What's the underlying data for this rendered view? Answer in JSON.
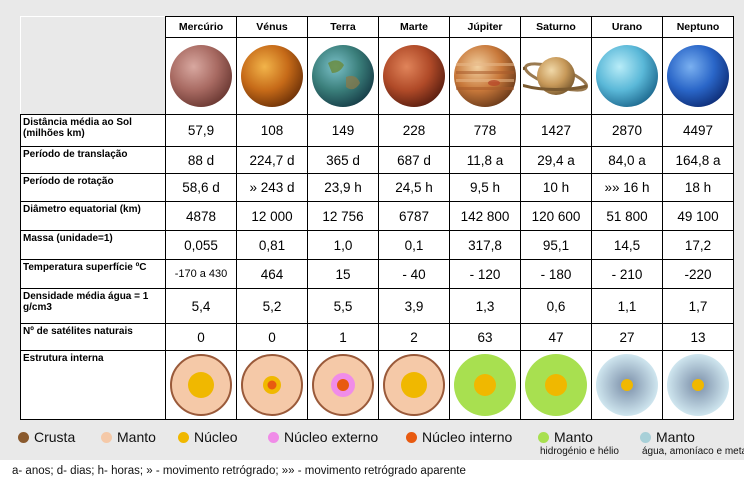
{
  "planets": [
    {
      "name": "Mercúrio",
      "distance": "57,9",
      "translation": "88 d",
      "rotation": "58,6 d",
      "diameter": "4878",
      "mass": "0,055",
      "temperature": "-170 a 430",
      "density": "5,4",
      "satellites": "0",
      "img_colors": [
        "#d8a8a0",
        "#a86a62",
        "#6a3832"
      ],
      "struct": {
        "crust": "#9a5a3a",
        "mantle": "#f5c9a8",
        "inner_core": "#f0b800"
      }
    },
    {
      "name": "Vénus",
      "distance": "108",
      "translation": "224,7 d",
      "rotation": "» 243 d",
      "diameter": "12 000",
      "mass": "0,81",
      "temperature": "464",
      "density": "5,2",
      "satellites": "0",
      "img_colors": [
        "#f2b44a",
        "#c66a18",
        "#6e3208"
      ],
      "struct": {
        "crust": "#9a5a3a",
        "mantle": "#f5c9a8",
        "outer_core": "#f0b800",
        "inner_core": "#e85a10"
      }
    },
    {
      "name": "Terra",
      "distance": "149",
      "translation": "365 d",
      "rotation": "23,9 h",
      "diameter": "12 756",
      "mass": "1,0",
      "temperature": "15",
      "density": "5,5",
      "satellites": "1",
      "img_colors": [
        "#7ac0c8",
        "#3a7e7a",
        "#173e48"
      ],
      "struct": {
        "crust": "#9a5a3a",
        "mantle": "#f5c9a8",
        "outer_core": "#f08ce8",
        "inner_core": "#e85a10"
      }
    },
    {
      "name": "Marte",
      "distance": "228",
      "translation": "687 d",
      "rotation": "24,5 h",
      "diameter": "6787",
      "mass": "0,1",
      "temperature": "- 40",
      "density": "3,9",
      "satellites": "2",
      "img_colors": [
        "#e0845a",
        "#b04a28",
        "#5a1e10"
      ],
      "struct": {
        "crust": "#9a5a3a",
        "mantle": "#f5c9a8",
        "inner_core": "#f0b800"
      }
    },
    {
      "name": "Júpiter",
      "distance": "778",
      "translation": "11,8 a",
      "rotation": "9,5 h",
      "diameter": "142 800",
      "mass": "317,8",
      "temperature": "- 120",
      "density": "1,3",
      "satellites": "63",
      "img_colors": [
        "#f2d0a0",
        "#c8783a",
        "#6a3a1a"
      ],
      "struct": {
        "mantle": "#a8e050",
        "core": "#f0b800"
      }
    },
    {
      "name": "Saturno",
      "distance": "1427",
      "translation": "29,4 a",
      "rotation": "10 h",
      "diameter": "120 600",
      "mass": "95,1",
      "temperature": "- 180",
      "density": "0,6",
      "satellites": "47",
      "img_colors": [
        "#f0d8a8",
        "#c89a5a",
        "#7a5a30"
      ],
      "struct": {
        "mantle": "#a8e050",
        "core": "#f0b800"
      }
    },
    {
      "name": "Urano",
      "distance": "2870",
      "translation": "84,0 a",
      "rotation": "»» 16 h",
      "diameter": "51 800",
      "mass": "14,5",
      "temperature": "- 210",
      "density": "1,1",
      "satellites": "27",
      "img_colors": [
        "#b8ecf8",
        "#5ab8d8",
        "#1e6a90"
      ],
      "struct": {
        "mantle_outer": "#cfe6ef",
        "mantle_inner": "#7a8ea8",
        "core": "#f0b800"
      }
    },
    {
      "name": "Neptuno",
      "distance": "4497",
      "translation": "164,8 a",
      "rotation": "18 h",
      "diameter": "49 100",
      "mass": "17,2",
      "temperature": "-220",
      "density": "1,7",
      "satellites": "13",
      "img_colors": [
        "#7ab0f0",
        "#2a66c8",
        "#0e2e78"
      ],
      "struct": {
        "mantle_outer": "#cfe6ef",
        "mantle_inner": "#7a8ea8",
        "core": "#f0b800"
      }
    }
  ],
  "row_labels": {
    "distance": "Distância média ao Sol (milhões km)",
    "translation": "Período de translação",
    "rotation": "Período de rotação",
    "diameter": "Diâmetro equatorial (km)",
    "mass": "Massa (unidade=1)",
    "temperature": "Temperatura superfície ºC",
    "density": "Densidade média água = 1 g/cm3",
    "satellites": "Nº de satélites naturais",
    "structure": "Estrutura interna"
  },
  "legend": [
    {
      "label": "Crusta",
      "color": "#8a5a2e",
      "sub": ""
    },
    {
      "label": "Manto",
      "color": "#f5c9a8",
      "sub": ""
    },
    {
      "label": "Núcleo",
      "color": "#f0b800",
      "sub": ""
    },
    {
      "label": "Núcleo externo",
      "color": "#f08ce8",
      "sub": ""
    },
    {
      "label": "Núcleo interno",
      "color": "#e85a10",
      "sub": ""
    },
    {
      "label": "Manto",
      "color": "#a8e050",
      "sub": "hidrogénio e hélio"
    },
    {
      "label": "Manto",
      "color": "#a8d0d8",
      "sub": "água, amoníaco e metano"
    }
  ],
  "footnote": "a- anos; d- dias; h- horas; » - movimento retrógrado; »» - movimento retrógrado aparente"
}
